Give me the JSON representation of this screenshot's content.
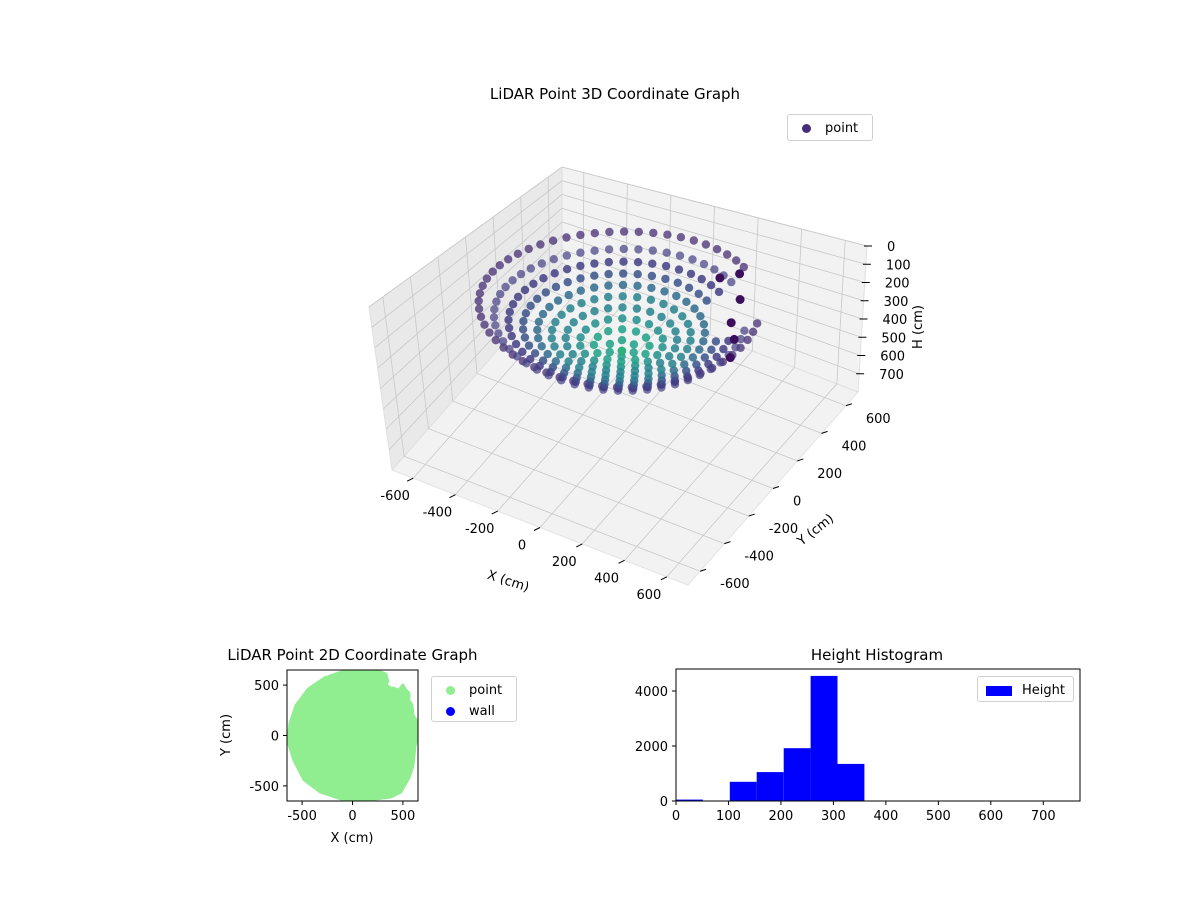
{
  "chart_data": [
    {
      "type": "scatter",
      "title": "LiDAR Point 3D Coordinate Graph",
      "xlabel": "X (cm)",
      "ylabel": "Y (cm)",
      "zlabel": "H (cm)",
      "xlim": [
        -700,
        700
      ],
      "ylim": [
        -700,
        700
      ],
      "zlim": [
        800,
        0
      ],
      "xticks": [
        "-600",
        "-400",
        "-200",
        "0",
        "200",
        "400",
        "600"
      ],
      "yticks": [
        "-600",
        "-400",
        "-200",
        "0",
        "200",
        "400",
        "600"
      ],
      "zticks": [
        "0",
        "100",
        "200",
        "300",
        "400",
        "500",
        "600",
        "700"
      ],
      "grid": true,
      "legend": {
        "placement": "top-right",
        "entries": [
          {
            "label": "point",
            "color": "#472c7a"
          }
        ]
      },
      "series": [
        {
          "name": "point",
          "shape": "approximately circular bowl of points, radius about 550 cm, heights about 100-350 cm, colored by height (viridis)",
          "approx_radius": 550,
          "height_range": [
            100,
            350
          ]
        }
      ]
    },
    {
      "type": "scatter",
      "title": "LiDAR Point 2D Coordinate Graph",
      "xlabel": "X (cm)",
      "ylabel": "Y (cm)",
      "xlim": [
        -650,
        650
      ],
      "ylim": [
        -650,
        650
      ],
      "xticks": [
        -500,
        0,
        500
      ],
      "yticks": [
        -500,
        0,
        500
      ],
      "legend": {
        "placement": "outside-right",
        "entries": [
          {
            "label": "point",
            "color": "#90ee90"
          },
          {
            "label": "wall",
            "color": "#0000ff"
          }
        ]
      },
      "series": [
        {
          "name": "point",
          "color": "#90ee90",
          "outline": [
            [
              -80,
              640
            ],
            [
              200,
              660
            ],
            [
              330,
              610
            ],
            [
              350,
              540
            ],
            [
              330,
              500
            ],
            [
              370,
              480
            ],
            [
              380,
              440
            ],
            [
              400,
              470
            ],
            [
              460,
              450
            ],
            [
              500,
              500
            ],
            [
              520,
              460
            ],
            [
              560,
              420
            ],
            [
              560,
              350
            ],
            [
              590,
              300
            ],
            [
              600,
              200
            ],
            [
              640,
              140
            ],
            [
              650,
              0
            ],
            [
              620,
              -100
            ],
            [
              600,
              -300
            ],
            [
              560,
              -420
            ],
            [
              480,
              -560
            ],
            [
              380,
              -610
            ],
            [
              150,
              -640
            ],
            [
              -80,
              -640
            ],
            [
              -320,
              -560
            ],
            [
              -480,
              -440
            ],
            [
              -580,
              -250
            ],
            [
              -640,
              -60
            ],
            [
              -620,
              120
            ],
            [
              -560,
              300
            ],
            [
              -440,
              460
            ],
            [
              -280,
              570
            ]
          ]
        },
        {
          "name": "wall",
          "color": "#0000ff",
          "points": []
        }
      ]
    },
    {
      "type": "bar",
      "title": "Height Histogram",
      "xlim": [
        0,
        770
      ],
      "ylim": [
        0,
        4800
      ],
      "xticks": [
        0,
        100,
        200,
        300,
        400,
        500,
        600,
        700
      ],
      "yticks": [
        0,
        2000,
        4000
      ],
      "legend": {
        "placement": "top-right",
        "entries": [
          {
            "label": "Height",
            "color": "#0000ff"
          }
        ]
      },
      "bin_edges": [
        0,
        51.3,
        102.6,
        153.9,
        205.2,
        256.5,
        307.8,
        359.1,
        410.4,
        461.7,
        513.0,
        564.3,
        615.6,
        666.9,
        718.2,
        769.5
      ],
      "series": [
        {
          "name": "Height",
          "color": "#0000ff",
          "values": [
            50,
            0,
            700,
            1050,
            1920,
            4550,
            1350,
            0,
            0,
            0,
            0,
            0,
            0,
            0,
            0
          ]
        }
      ]
    }
  ]
}
